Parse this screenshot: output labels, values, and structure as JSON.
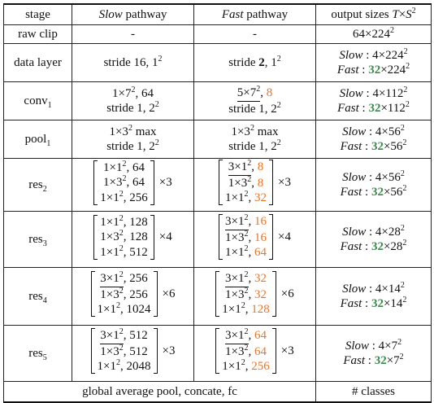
{
  "headers": {
    "stage": "stage",
    "slow": "Slow",
    "slow_suffix": "pathway",
    "fast": "Fast",
    "fast_suffix": "pathway",
    "output": "output sizes T×S²"
  },
  "rows": [
    {
      "stage": "raw clip",
      "slow": [
        "-"
      ],
      "fast": [
        "-"
      ],
      "output": [
        "64×224²"
      ]
    },
    {
      "stage": "data layer",
      "slow": [
        "stride 16, 1²"
      ],
      "fast": [
        "stride 2, 1²"
      ],
      "output": [
        "Slow : 4×224²",
        "Fast : 32×224²"
      ]
    },
    {
      "stage": "conv1",
      "slow": [
        "1×7², 64",
        "stride 1, 2²"
      ],
      "fast": [
        "5×7², 8",
        "stride 1, 2²"
      ],
      "output": [
        "Slow : 4×112²",
        "Fast : 32×112²"
      ]
    },
    {
      "stage": "pool1",
      "slow": [
        "1×3² max",
        "stride 1, 2²"
      ],
      "fast": [
        "1×3² max",
        "stride 1, 2²"
      ],
      "output": [
        "Slow : 4×56²",
        "Fast : 32×56²"
      ]
    },
    {
      "stage": "res2",
      "slow": [
        "1×1², 64",
        "1×3², 64",
        "1×1², 256"
      ],
      "slow_mult": "×3",
      "fast": [
        "3×1², 8",
        "1×3², 8",
        "1×1², 32"
      ],
      "fast_mult": "×3",
      "output": [
        "Slow : 4×56²",
        "Fast : 32×56²"
      ]
    },
    {
      "stage": "res3",
      "slow": [
        "1×1², 128",
        "1×3², 128",
        "1×1², 512"
      ],
      "slow_mult": "×4",
      "fast": [
        "3×1², 16",
        "1×3², 16",
        "1×1², 64"
      ],
      "fast_mult": "×4",
      "output": [
        "Slow : 4×28²",
        "Fast : 32×28²"
      ]
    },
    {
      "stage": "res4",
      "slow": [
        "3×1², 256",
        "1×3², 256",
        "1×1², 1024"
      ],
      "slow_mult": "×6",
      "fast": [
        "3×1², 32",
        "1×3², 32",
        "1×1², 128"
      ],
      "fast_mult": "×6",
      "output": [
        "Slow : 4×14²",
        "Fast : 32×14²"
      ]
    },
    {
      "stage": "res5",
      "slow": [
        "3×1², 512",
        "1×3², 512",
        "1×1², 2048"
      ],
      "slow_mult": "×3",
      "fast": [
        "3×1², 64",
        "1×3², 64",
        "1×1², 256"
      ],
      "fast_mult": "×3",
      "output": [
        "Slow : 4×7²",
        "Fast : 32×7²"
      ]
    }
  ],
  "footer": {
    "left": "global average pool, concate, fc",
    "right": "# classes"
  },
  "colors": {
    "fast_channel": "#e8742a",
    "fast_frames": "#3c8a4e"
  }
}
